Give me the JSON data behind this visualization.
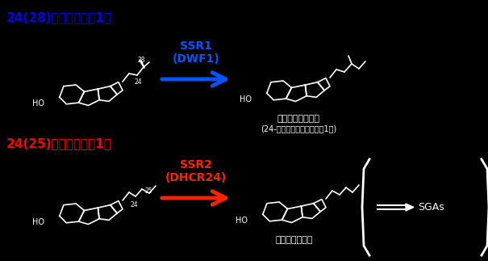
{
  "bg_color": "#000000",
  "title1": "24(28)位還元反応の1例",
  "title2": "24(25)位還元反応の1例",
  "title_color": "#0000ff",
  "title2_color": "#ff0000",
  "arrow1_color": "#0055ff",
  "arrow2_color": "#ff2200",
  "label1": "SSR1\n(DWF1)",
  "label2": "SSR2\n(DHCR24)",
  "label_color1": "#0055ff",
  "label_color2": "#ff2200",
  "product1_name": "カンペステロール",
  "product1_sub": "(24-アルキルステロールの1種)",
  "product2_name": "コレステロール",
  "sga_text": "SGAs",
  "text_color": "#ffffff",
  "struct_color": "#ffffff"
}
